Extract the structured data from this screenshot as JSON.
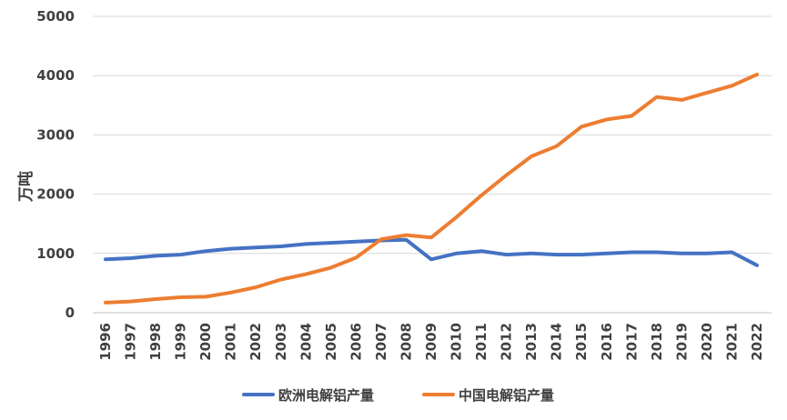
{
  "chart_data": {
    "type": "line",
    "ylabel": "万吨",
    "xlabel": "",
    "ylim": [
      0,
      5000
    ],
    "yticks": [
      0,
      1000,
      2000,
      3000,
      4000,
      5000
    ],
    "grid": "horizontal",
    "legend_position": "bottom",
    "x": [
      "1996",
      "1997",
      "1998",
      "1999",
      "2000",
      "2001",
      "2002",
      "2003",
      "2004",
      "2005",
      "2006",
      "2007",
      "2008",
      "2009",
      "2010",
      "2011",
      "2012",
      "2013",
      "2014",
      "2015",
      "2016",
      "2017",
      "2018",
      "2019",
      "2020",
      "2021",
      "2022"
    ],
    "series": [
      {
        "name": "欧洲电解铝产量",
        "color": "#4472C4",
        "values": [
          900,
          920,
          960,
          980,
          1040,
          1080,
          1100,
          1120,
          1160,
          1180,
          1200,
          1220,
          1230,
          900,
          1000,
          1040,
          980,
          1000,
          980,
          980,
          1000,
          1020,
          1020,
          1000,
          1000,
          1020,
          800
        ]
      },
      {
        "name": "中国电解铝产量",
        "color": "#ED7D31",
        "values": [
          170,
          190,
          230,
          260,
          270,
          340,
          430,
          560,
          650,
          760,
          930,
          1240,
          1310,
          1270,
          1610,
          1980,
          2320,
          2640,
          2810,
          3140,
          3260,
          3320,
          3640,
          3590,
          3710,
          3830,
          4020
        ]
      }
    ]
  }
}
